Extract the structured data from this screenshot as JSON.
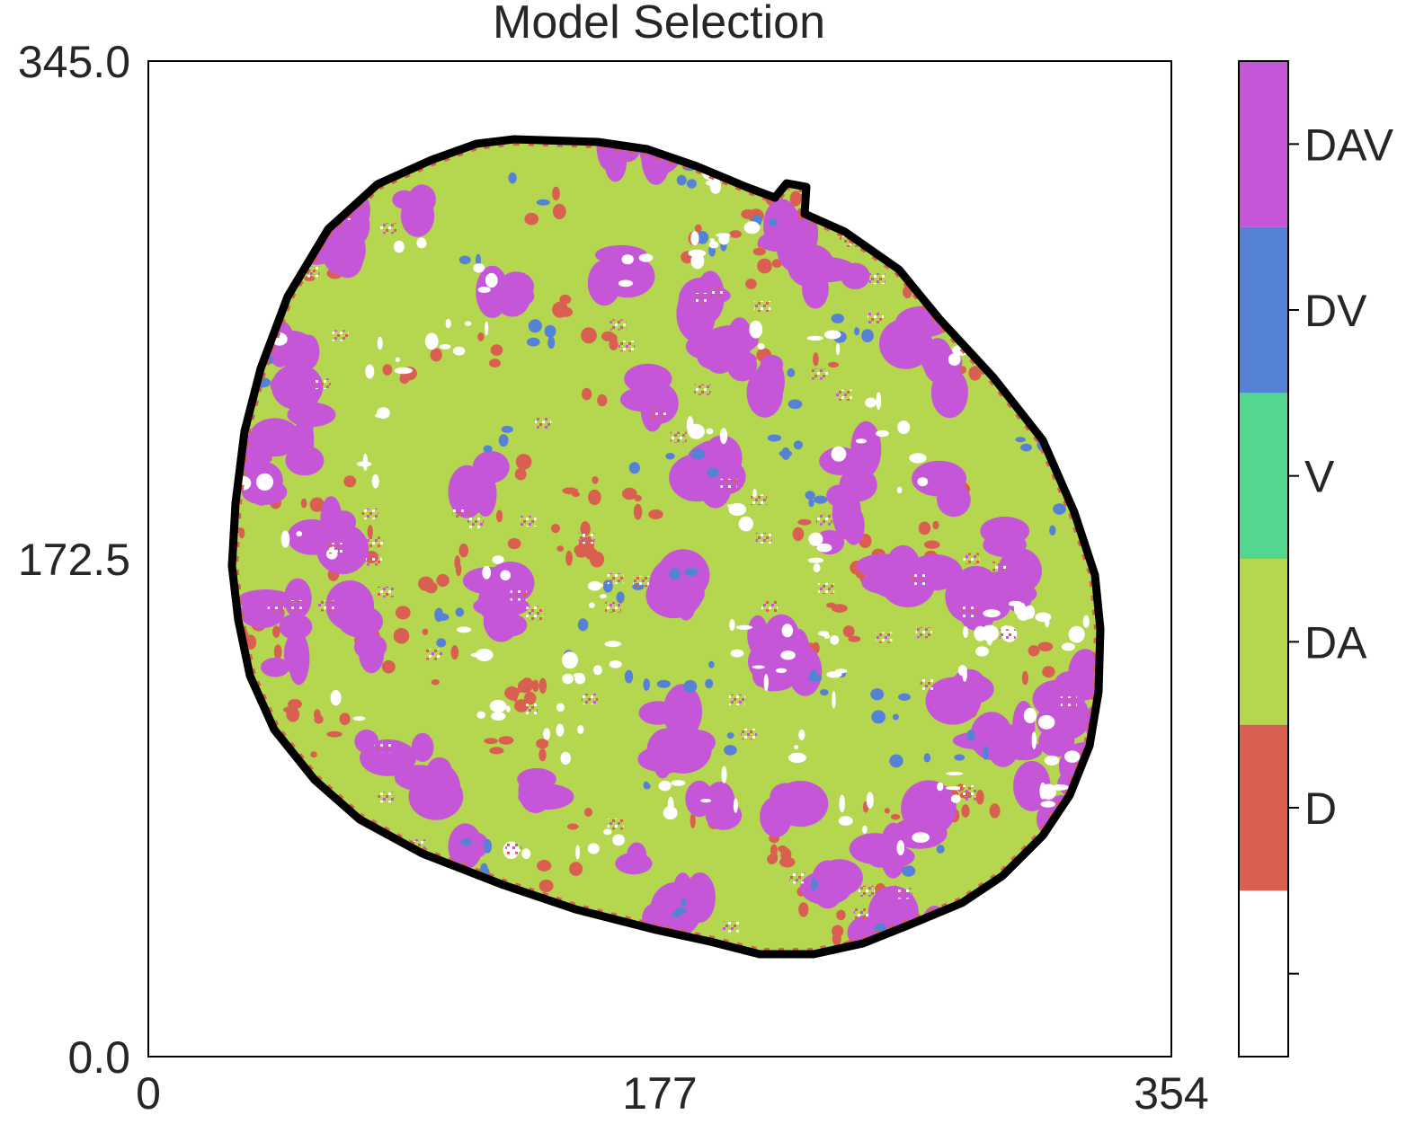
{
  "chart_data": {
    "type": "heatmap",
    "title": "Model Selection",
    "xlabel": "",
    "ylabel": "",
    "xlim": [
      0,
      354
    ],
    "ylim": [
      0,
      345
    ],
    "x_ticks": [
      "0",
      "177",
      "354"
    ],
    "y_ticks": [
      "0.0",
      "172.5",
      "345.0"
    ],
    "grid": false,
    "categories": [
      {
        "label": "",
        "color": "#ffffff"
      },
      {
        "label": "D",
        "color": "#d95f50"
      },
      {
        "label": "DA",
        "color": "#b5d64f"
      },
      {
        "label": "V",
        "color": "#52d690"
      },
      {
        "label": "DV",
        "color": "#5682d6"
      },
      {
        "label": "DAV",
        "color": "#c656d8"
      }
    ],
    "dominant_category": "DA",
    "region_outline_color": "#000000"
  }
}
